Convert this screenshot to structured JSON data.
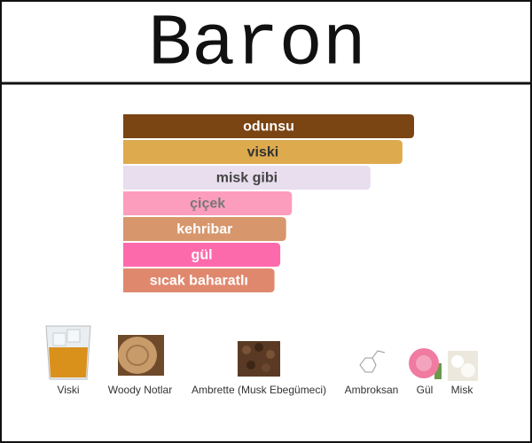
{
  "title": "Baron",
  "chart_data": {
    "type": "bar",
    "orientation": "horizontal",
    "categories": [
      "odunsu",
      "viski",
      "misk gibi",
      "çiçek",
      "kehribar",
      "gül",
      "sıcak baharatlı"
    ],
    "values": [
      100,
      96,
      85,
      58,
      56,
      54,
      52
    ],
    "colors": [
      "#7a4413",
      "#ddaa4d",
      "#e8deee",
      "#fd9dbd",
      "#d7966c",
      "#fd6aac",
      "#e0886e"
    ],
    "text_colors": [
      "#ffffff",
      "#333333",
      "#444444",
      "#777777",
      "#ffffff",
      "#ffffff",
      "#ffffff"
    ],
    "xlim": [
      0,
      100
    ]
  },
  "notes": [
    {
      "label": "Viski"
    },
    {
      "label": "Woody Notlar"
    },
    {
      "label": "Ambrette (Musk Ebegümeci)"
    },
    {
      "label": "Ambroksan"
    },
    {
      "label": "Gül"
    },
    {
      "label": "Misk"
    }
  ]
}
